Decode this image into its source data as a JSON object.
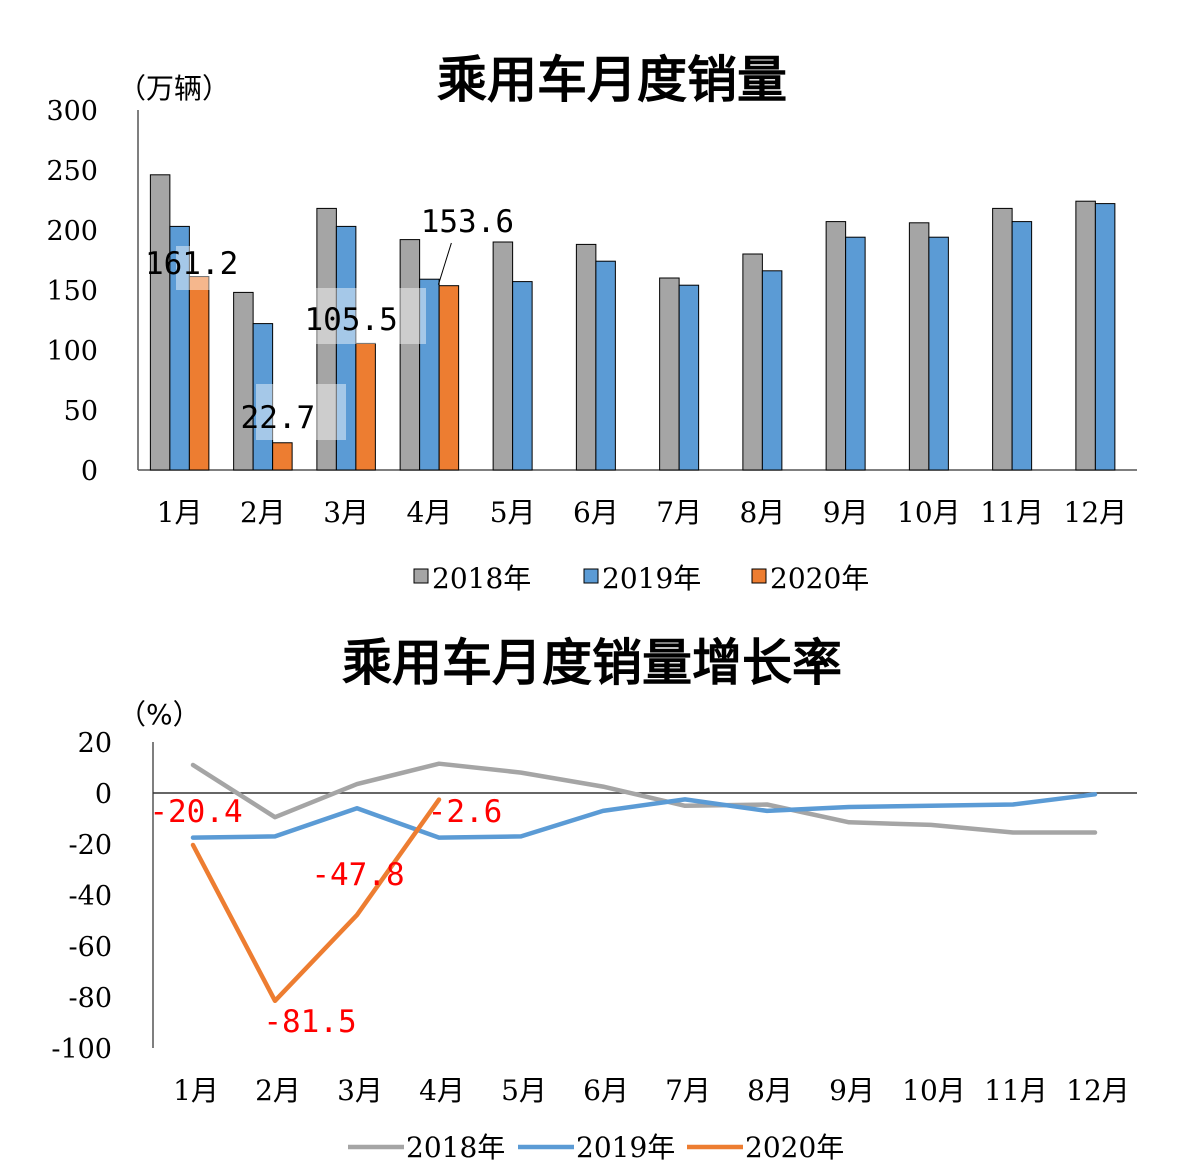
{
  "chart_data": [
    {
      "type": "bar",
      "title": "乘用车月度销量",
      "unit_label": "（万辆）",
      "categories": [
        "1月",
        "2月",
        "3月",
        "4月",
        "5月",
        "6月",
        "7月",
        "8月",
        "9月",
        "10月",
        "11月",
        "12月"
      ],
      "yticks": [
        "0",
        "50",
        "100",
        "150",
        "200",
        "250",
        "300"
      ],
      "ylim": [
        0,
        300
      ],
      "legend_position": "bottom",
      "series": [
        {
          "name": "2018年",
          "color": "#a5a5a5",
          "values": [
            246,
            148,
            218,
            192,
            190,
            188,
            160,
            180,
            207,
            206,
            218,
            224
          ]
        },
        {
          "name": "2019年",
          "color": "#5b9bd5",
          "values": [
            203,
            122,
            203,
            159,
            157,
            174,
            154,
            166,
            194,
            194,
            207,
            222
          ]
        },
        {
          "name": "2020年",
          "color": "#ed7d31",
          "values": [
            161.2,
            22.7,
            105.5,
            153.6,
            null,
            null,
            null,
            null,
            null,
            null,
            null,
            null
          ]
        }
      ],
      "data_labels": [
        "161.2",
        "22.7",
        "105.5",
        "153.6"
      ]
    },
    {
      "type": "line",
      "title": "乘用车月度销量增长率",
      "unit_label": "（%）",
      "categories": [
        "1月",
        "2月",
        "3月",
        "4月",
        "5月",
        "6月",
        "7月",
        "8月",
        "9月",
        "10月",
        "11月",
        "12月"
      ],
      "yticks": [
        "20",
        "0",
        "-20",
        "-40",
        "-60",
        "-80",
        "-100"
      ],
      "ylim": [
        -100,
        20
      ],
      "legend_position": "bottom",
      "series": [
        {
          "name": "2018年",
          "color": "#a5a5a5",
          "values": [
            11,
            -9.5,
            3.5,
            11.5,
            8,
            2.5,
            -5,
            -4.5,
            -11.5,
            -12.5,
            -15.5,
            -15.5
          ]
        },
        {
          "name": "2019年",
          "color": "#5b9bd5",
          "values": [
            -17.5,
            -17,
            -6,
            -17.5,
            -17,
            -7,
            -2.5,
            -7,
            -5.5,
            -5,
            -4.5,
            -0.5
          ]
        },
        {
          "name": "2020年",
          "color": "#ed7d31",
          "values": [
            -20.4,
            -81.5,
            -47.8,
            -2.6,
            null,
            null,
            null,
            null,
            null,
            null,
            null,
            null
          ]
        }
      ],
      "data_labels": [
        "-20.4",
        "-81.5",
        "-47.8",
        "-2.6"
      ],
      "data_label_color": "#ff0000"
    }
  ]
}
